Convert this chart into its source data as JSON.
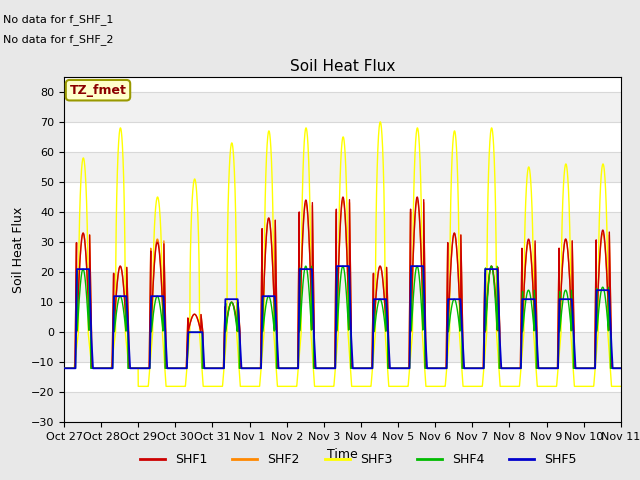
{
  "title": "Soil Heat Flux",
  "xlabel": "Time",
  "ylabel": "Soil Heat Flux",
  "ylim": [
    -30,
    85
  ],
  "yticks": [
    -30,
    -20,
    -10,
    0,
    10,
    20,
    30,
    40,
    50,
    60,
    70,
    80
  ],
  "background_color": "#e8e8e8",
  "plot_bg_color": "#ffffff",
  "annotation_text1": "No data for f_SHF_1",
  "annotation_text2": "No data for f_SHF_2",
  "legend_label": "TZ_fmet",
  "colors": {
    "SHF1": "#cc0000",
    "SHF2": "#ff8800",
    "SHF3": "#ffff00",
    "SHF4": "#00bb00",
    "SHF5": "#0000cc"
  },
  "xtick_labels": [
    "Oct 27",
    "Oct 28",
    "Oct 29",
    "Oct 30",
    "Oct 31",
    "Nov 1",
    "Nov 2",
    "Nov 3",
    "Nov 4",
    "Nov 5",
    "Nov 6",
    "Nov 7",
    "Nov 8",
    "Nov 9",
    "Nov 10",
    "Nov 11"
  ],
  "n_days": 15,
  "shf3_peaks": [
    58,
    68,
    45,
    51,
    63,
    67,
    68,
    65,
    70,
    68,
    67,
    68,
    55,
    56,
    56
  ],
  "shf1_peaks": [
    33,
    22,
    30,
    6,
    10,
    38,
    44,
    45,
    22,
    45,
    33,
    22,
    31,
    31,
    34
  ],
  "shf2_peaks": [
    33,
    22,
    31,
    6,
    10,
    38,
    43,
    44,
    22,
    44,
    33,
    22,
    30,
    31,
    33
  ],
  "shf4_peaks": [
    21,
    12,
    12,
    0,
    10,
    12,
    22,
    22,
    11,
    22,
    11,
    22,
    14,
    14,
    15
  ],
  "shf5_peaks": [
    21,
    12,
    12,
    0,
    11,
    12,
    21,
    22,
    11,
    22,
    11,
    21,
    11,
    11,
    14
  ],
  "night_val": -12,
  "shf3_night": -18,
  "shf3_night_days": [
    2,
    3,
    4,
    5,
    6,
    7,
    8,
    9,
    10,
    11,
    12,
    13,
    14
  ]
}
